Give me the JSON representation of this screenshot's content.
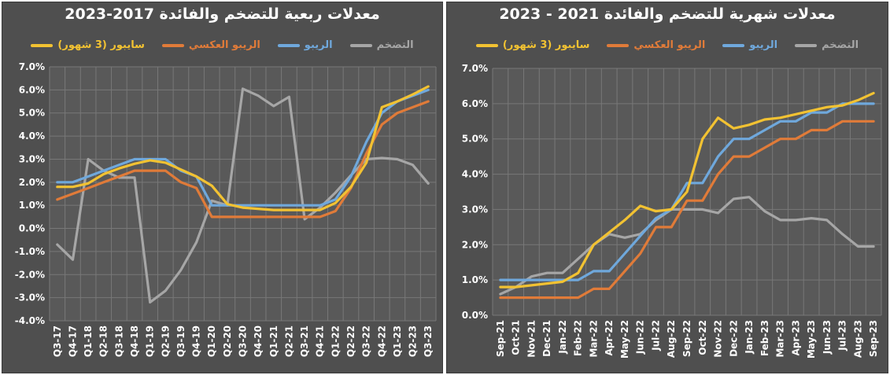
{
  "colors": {
    "inflation": "#a6a6a6",
    "repo": "#6fa8dc",
    "reverse_repo": "#e07b39",
    "saibor": "#f2c232",
    "panel_bg": "#4f4f4f",
    "plot_bg": "#595959",
    "grid": "#787878"
  },
  "chart_data": [
    {
      "type": "line",
      "title": "معدلات ربعية للتضخم والفائدة 2017-2023",
      "categories": [
        "Q3-17",
        "Q4-17",
        "Q1-18",
        "Q2-18",
        "Q3-18",
        "Q4-18",
        "Q1-19",
        "Q2-19",
        "Q3-19",
        "Q4-19",
        "Q1-20",
        "Q2-20",
        "Q3-20",
        "Q4-20",
        "Q1-21",
        "Q2-21",
        "Q3-21",
        "Q4-21",
        "Q1-22",
        "Q2-22",
        "Q3-22",
        "Q4-22",
        "Q1-23",
        "Q2-23",
        "Q3-23"
      ],
      "ylim": [
        -4,
        7
      ],
      "yticks": [
        "-4.0%",
        "-3.0%",
        "-2.0%",
        "-1.0%",
        "0.0%",
        "1.0%",
        "2.0%",
        "3.0%",
        "4.0%",
        "5.0%",
        "6.0%",
        "7.0%"
      ],
      "legend": [
        "التضخم",
        "الريبو",
        "الريبو العكسي",
        "سايبور (3 شهور)"
      ],
      "series": [
        {
          "name": "التضخم",
          "key": "inflation",
          "values": [
            -0.7,
            -1.35,
            3.0,
            2.5,
            2.2,
            2.2,
            -3.2,
            -2.7,
            -1.8,
            -0.6,
            1.2,
            1.0,
            6.05,
            5.75,
            5.3,
            5.7,
            0.4,
            0.9,
            1.55,
            2.3,
            3.0,
            3.05,
            3.0,
            2.75,
            1.95
          ]
        },
        {
          "name": "الريبو",
          "key": "repo",
          "values": [
            2.0,
            2.0,
            2.25,
            2.5,
            2.75,
            3.0,
            3.0,
            3.0,
            2.5,
            2.25,
            1.0,
            1.0,
            1.0,
            1.0,
            1.0,
            1.0,
            1.0,
            1.0,
            1.25,
            2.25,
            3.75,
            5.0,
            5.5,
            5.75,
            6.0
          ]
        },
        {
          "name": "الريبو العكسي",
          "key": "reverse_repo",
          "values": [
            1.25,
            1.5,
            1.75,
            2.0,
            2.25,
            2.5,
            2.5,
            2.5,
            2.0,
            1.75,
            0.5,
            0.5,
            0.5,
            0.5,
            0.5,
            0.5,
            0.5,
            0.5,
            0.75,
            1.75,
            3.25,
            4.5,
            5.0,
            5.25,
            5.5
          ]
        },
        {
          "name": "سايبور (3 شهور)",
          "key": "saibor",
          "values": [
            1.8,
            1.8,
            1.95,
            2.35,
            2.6,
            2.8,
            2.95,
            2.85,
            2.55,
            2.25,
            1.85,
            1.05,
            0.9,
            0.85,
            0.8,
            0.8,
            0.8,
            0.8,
            1.1,
            1.8,
            2.85,
            5.25,
            5.5,
            5.8,
            6.15
          ]
        }
      ]
    },
    {
      "type": "line",
      "title": "معدلات شهرية للتضخم والفائدة 2021 - 2023",
      "categories": [
        "Sep-21",
        "Oct-21",
        "Nov-21",
        "Dec-21",
        "Jan-22",
        "Feb-22",
        "Mar-22",
        "Apr-22",
        "May-22",
        "Jun-22",
        "Jul-22",
        "Aug-22",
        "Sep-22",
        "Oct-22",
        "Nov-22",
        "Dec-22",
        "Jan-23",
        "Feb-23",
        "Mar-23",
        "Apr-23",
        "May-23",
        "Jun-23",
        "Jul-23",
        "Aug-23",
        "Sep-23"
      ],
      "xtick_labels": [
        "Sep-21",
        "Oct-21",
        "Nov-21",
        "Dec-21",
        "Jan-22",
        "Feb-22",
        "Mar-22",
        "Apr-22",
        "May-22",
        "Jun-22",
        "Jul-22",
        "Aug-22",
        "Sep-22",
        "Oct-22",
        "Nov-22",
        "Dec-22",
        "Jan-23",
        "Feb-23",
        "Mar-23",
        "Apr-23",
        "May-23",
        "Jun-23",
        "Jul-23",
        "Aug-23",
        "Sep-23"
      ],
      "ylim": [
        0,
        7
      ],
      "yticks": [
        "0.0%",
        "1.0%",
        "2.0%",
        "3.0%",
        "4.0%",
        "5.0%",
        "6.0%",
        "7.0%"
      ],
      "legend": [
        "التضخم",
        "الريبو",
        "الريبو العكسي",
        "سايبور (3 شهور)"
      ],
      "series": [
        {
          "name": "التضخم",
          "key": "inflation",
          "values": [
            0.6,
            0.8,
            1.1,
            1.2,
            1.2,
            1.6,
            2.0,
            2.3,
            2.2,
            2.3,
            2.7,
            3.0,
            3.0,
            3.0,
            2.9,
            3.3,
            3.35,
            2.95,
            2.7,
            2.7,
            2.75,
            2.7,
            2.3,
            1.95,
            1.95
          ]
        },
        {
          "name": "الريبو",
          "key": "repo",
          "values": [
            1.0,
            1.0,
            1.0,
            1.0,
            1.0,
            1.0,
            1.25,
            1.25,
            1.75,
            2.25,
            2.75,
            3.0,
            3.75,
            3.75,
            4.5,
            5.0,
            5.0,
            5.25,
            5.5,
            5.5,
            5.75,
            5.75,
            6.0,
            6.0,
            6.0
          ]
        },
        {
          "name": "الريبو العكسي",
          "key": "reverse_repo",
          "values": [
            0.5,
            0.5,
            0.5,
            0.5,
            0.5,
            0.5,
            0.75,
            0.75,
            1.25,
            1.75,
            2.5,
            2.5,
            3.25,
            3.25,
            4.0,
            4.5,
            4.5,
            4.75,
            5.0,
            5.0,
            5.25,
            5.25,
            5.5,
            5.5,
            5.5
          ]
        },
        {
          "name": "سايبور (3 شهور)",
          "key": "saibor",
          "values": [
            0.8,
            0.8,
            0.85,
            0.9,
            0.95,
            1.2,
            2.0,
            2.35,
            2.7,
            3.1,
            2.95,
            3.0,
            3.5,
            5.0,
            5.6,
            5.3,
            5.4,
            5.55,
            5.6,
            5.7,
            5.8,
            5.9,
            5.95,
            6.1,
            6.3
          ]
        }
      ]
    }
  ]
}
